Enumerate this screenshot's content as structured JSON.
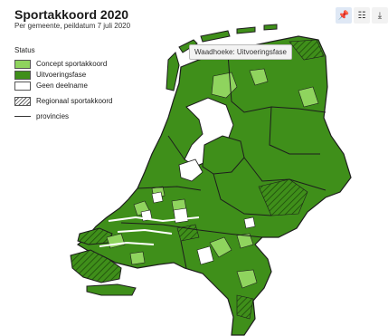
{
  "title": "Sportakkoord 2020",
  "subtitle": "Per gemeente, peildatum 7 juli 2020",
  "toolbar": {
    "pin_icon": "pin-icon",
    "table_icon": "table-icon",
    "download_icon": "download-icon"
  },
  "legend": {
    "title": "Status",
    "items": [
      {
        "label": "Concept sportakkoord",
        "color": "#8fd45e",
        "pattern": false
      },
      {
        "label": "Uitvoeringsfase",
        "color": "#3f8f1a",
        "pattern": false
      },
      {
        "label": "Geen deelname",
        "color": "#ffffff",
        "pattern": false
      },
      {
        "label": "Regionaal sportakkoord",
        "color": "#ffffff",
        "pattern": true
      }
    ],
    "line_label": "provincies"
  },
  "tooltip": "Waadhoeke: Uitvoeringsfase",
  "colors": {
    "uitvoeringsfase": "#3f8f1a",
    "concept": "#8fd45e",
    "geen": "#ffffff",
    "water": "#ffffff",
    "border": "#1d1d1d"
  }
}
